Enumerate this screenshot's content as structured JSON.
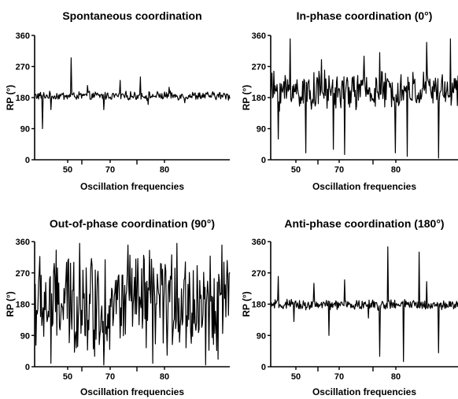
{
  "chart_data": [
    {
      "type": "line",
      "title": "Spontaneous coordination",
      "xlabel": "Oscillation frequencies",
      "ylabel": "RP (°)",
      "ylim": [
        0,
        360
      ],
      "yticks": [
        "0",
        "90",
        "180",
        "270",
        "360"
      ],
      "xticks": [
        "50",
        "70",
        "80"
      ],
      "series": [
        {
          "x_range": [
            44,
            92
          ],
          "baseline": 185,
          "noise": 10,
          "spikes": [
            [
              46,
              90
            ],
            [
              48,
              145
            ],
            [
              53,
              295
            ],
            [
              57,
              215
            ],
            [
              61,
              145
            ],
            [
              65,
              230
            ],
            [
              70,
              240
            ],
            [
              72,
              160
            ],
            [
              77,
              210
            ],
            [
              81,
              165
            ]
          ],
          "values": []
        }
      ]
    },
    {
      "type": "line",
      "title": "In-phase coordination (0°)",
      "xlabel": "Oscillation frequencies",
      "ylabel": "RP (°)",
      "ylim": [
        0,
        360
      ],
      "yticks": [
        "0",
        "90",
        "180",
        "270",
        "360"
      ],
      "xticks": [
        "50",
        "70",
        "80"
      ],
      "series": [
        {
          "x_range": [
            44,
            92
          ],
          "baseline": 200,
          "noise": 45,
          "spikes": [
            [
              46,
              60
            ],
            [
              49,
              350
            ],
            [
              53,
              20
            ],
            [
              57,
              290
            ],
            [
              60,
              30
            ],
            [
              63,
              15
            ],
            [
              68,
              300
            ],
            [
              72,
              310
            ],
            [
              76,
              20
            ],
            [
              79,
              10
            ],
            [
              84,
              340
            ],
            [
              87,
              5
            ],
            [
              90,
              350
            ]
          ],
          "values": []
        }
      ]
    },
    {
      "type": "line",
      "title": "Out-of-phase coordination (90°)",
      "xlabel": "Oscillation frequencies",
      "ylabel": "RP (°)",
      "ylim": [
        0,
        360
      ],
      "yticks": [
        "0",
        "90",
        "180",
        "270",
        "360"
      ],
      "xticks": [
        "50",
        "70",
        "80"
      ],
      "series": [
        {
          "x_range": [
            44,
            92
          ],
          "baseline": 180,
          "noise": 120,
          "spikes": [
            [
              48,
              10
            ],
            [
              55,
              355
            ],
            [
              61,
              5
            ],
            [
              67,
              350
            ],
            [
              73,
              10
            ],
            [
              79,
              355
            ],
            [
              86,
              5
            ],
            [
              90,
              350
            ]
          ],
          "values": []
        }
      ]
    },
    {
      "type": "line",
      "title": "Anti-phase coordination (180°)",
      "xlabel": "Oscillation frequencies",
      "ylabel": "RP (°)",
      "ylim": [
        0,
        360
      ],
      "yticks": [
        "0",
        "90",
        "180",
        "270",
        "360"
      ],
      "xticks": [
        "50",
        "70",
        "80"
      ],
      "series": [
        {
          "x_range": [
            44,
            92
          ],
          "baseline": 178,
          "noise": 12,
          "spikes": [
            [
              46,
              260
            ],
            [
              50,
              130
            ],
            [
              55,
              240
            ],
            [
              59,
              90
            ],
            [
              63,
              250
            ],
            [
              69,
              140
            ],
            [
              72,
              30
            ],
            [
              74,
              345
            ],
            [
              78,
              15
            ],
            [
              82,
              330
            ],
            [
              84,
              245
            ],
            [
              87,
              40
            ]
          ],
          "values": []
        }
      ]
    }
  ]
}
